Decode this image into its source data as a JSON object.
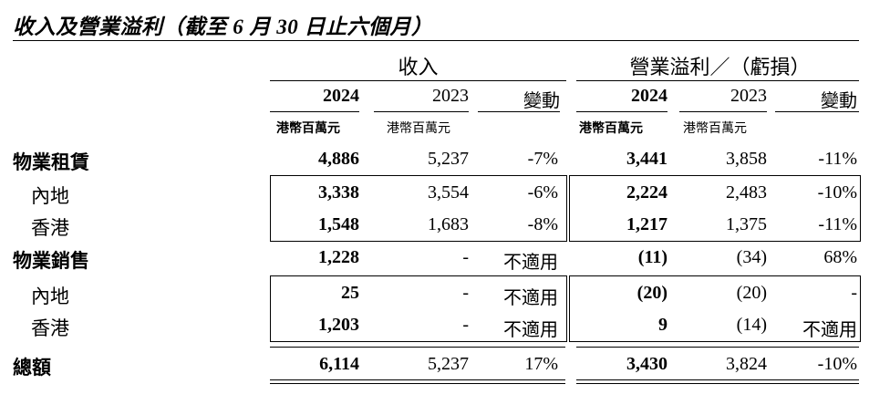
{
  "title": "收入及營業溢利（截至 6 月 30 日止六個月）",
  "headers": {
    "revenue": "收入",
    "operating": "營業溢利／（虧損）",
    "year_current": "2024",
    "year_prior": "2023",
    "change": "變動",
    "unit": "港幣百萬元"
  },
  "rows": [
    {
      "label": "物業租賃",
      "rev_2024": "4,886",
      "rev_2023": "5,237",
      "rev_change": "-7%",
      "op_2024": "3,441",
      "op_2023": "3,858",
      "op_change": "-11%"
    },
    {
      "label": "內地",
      "rev_2024": "3,338",
      "rev_2023": "3,554",
      "rev_change": "-6%",
      "op_2024": "2,224",
      "op_2023": "2,483",
      "op_change": "-10%"
    },
    {
      "label": "香港",
      "rev_2024": "1,548",
      "rev_2023": "1,683",
      "rev_change": "-8%",
      "op_2024": "1,217",
      "op_2023": "1,375",
      "op_change": "-11%"
    },
    {
      "label": "物業銷售",
      "rev_2024": "1,228",
      "rev_2023": "-",
      "rev_change": "不適用",
      "op_2024": "(11)",
      "op_2023": "(34)",
      "op_change": "68%"
    },
    {
      "label": "內地",
      "rev_2024": "25",
      "rev_2023": "-",
      "rev_change": "不適用",
      "op_2024": "(20)",
      "op_2023": "(20)",
      "op_change": "-"
    },
    {
      "label": "香港",
      "rev_2024": "1,203",
      "rev_2023": "-",
      "rev_change": "不適用",
      "op_2024": "9",
      "op_2023": "(14)",
      "op_change": "不適用"
    },
    {
      "label": "總額",
      "rev_2024": "6,114",
      "rev_2023": "5,237",
      "rev_change": "17%",
      "op_2024": "3,430",
      "op_2023": "3,824",
      "op_change": "-10%"
    }
  ]
}
